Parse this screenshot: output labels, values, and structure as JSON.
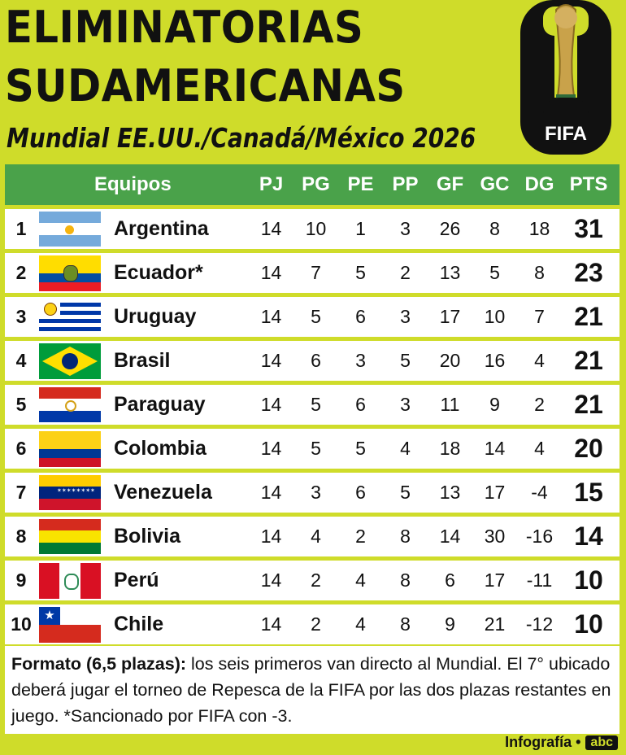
{
  "title_line1": "ELIMINATORIAS",
  "title_line2": "SUDAMERICANAS",
  "subtitle": "Mundial EE.UU./Canadá/México 2026",
  "logo_text": "FIFA",
  "headers": {
    "team": "Equipos",
    "pj": "PJ",
    "pg": "PG",
    "pe": "PE",
    "pp": "PP",
    "gf": "GF",
    "gc": "GC",
    "dg": "DG",
    "pts": "PTS"
  },
  "rows": [
    {
      "pos": "1",
      "team": "Argentina",
      "flag": "argentina-flag",
      "pj": "14",
      "pg": "10",
      "pe": "1",
      "pp": "3",
      "gf": "26",
      "gc": "8",
      "dg": "18",
      "pts": "31"
    },
    {
      "pos": "2",
      "team": "Ecuador*",
      "flag": "ecuador-flag",
      "pj": "14",
      "pg": "7",
      "pe": "5",
      "pp": "2",
      "gf": "13",
      "gc": "5",
      "dg": "8",
      "pts": "23"
    },
    {
      "pos": "3",
      "team": "Uruguay",
      "flag": "uruguay-flag",
      "pj": "14",
      "pg": "5",
      "pe": "6",
      "pp": "3",
      "gf": "17",
      "gc": "10",
      "dg": "7",
      "pts": "21"
    },
    {
      "pos": "4",
      "team": "Brasil",
      "flag": "brasil-flag",
      "pj": "14",
      "pg": "6",
      "pe": "3",
      "pp": "5",
      "gf": "20",
      "gc": "16",
      "dg": "4",
      "pts": "21"
    },
    {
      "pos": "5",
      "team": "Paraguay",
      "flag": "paraguay-flag",
      "pj": "14",
      "pg": "5",
      "pe": "6",
      "pp": "3",
      "gf": "11",
      "gc": "9",
      "dg": "2",
      "pts": "21"
    },
    {
      "pos": "6",
      "team": "Colombia",
      "flag": "colombia-flag",
      "pj": "14",
      "pg": "5",
      "pe": "5",
      "pp": "4",
      "gf": "18",
      "gc": "14",
      "dg": "4",
      "pts": "20"
    },
    {
      "pos": "7",
      "team": "Venezuela",
      "flag": "venezuela-flag",
      "pj": "14",
      "pg": "3",
      "pe": "6",
      "pp": "5",
      "gf": "13",
      "gc": "17",
      "dg": "-4",
      "pts": "15"
    },
    {
      "pos": "8",
      "team": "Bolivia",
      "flag": "bolivia-flag",
      "pj": "14",
      "pg": "4",
      "pe": "2",
      "pp": "8",
      "gf": "14",
      "gc": "30",
      "dg": "-16",
      "pts": "14"
    },
    {
      "pos": "9",
      "team": "Perú",
      "flag": "peru-flag",
      "pj": "14",
      "pg": "2",
      "pe": "4",
      "pp": "8",
      "gf": "6",
      "gc": "17",
      "dg": "-11",
      "pts": "10"
    },
    {
      "pos": "10",
      "team": "Chile",
      "flag": "chile-flag",
      "pj": "14",
      "pg": "2",
      "pe": "4",
      "pp": "8",
      "gf": "9",
      "gc": "21",
      "dg": "-12",
      "pts": "10"
    }
  ],
  "footer_bold": "Formato (6,5 plazas):",
  "footer_text": " los seis primeros van directo al Mundial. El 7° ubicado deberá jugar el torneo de Repesca de la FIFA por las dos plazas restantes en juego. *Sancionado por FIFA con -3.",
  "credit_label": "Infografía •",
  "credit_brand": "abc",
  "colors": {
    "background": "#cfdc2a",
    "header": "#4aa24a"
  }
}
